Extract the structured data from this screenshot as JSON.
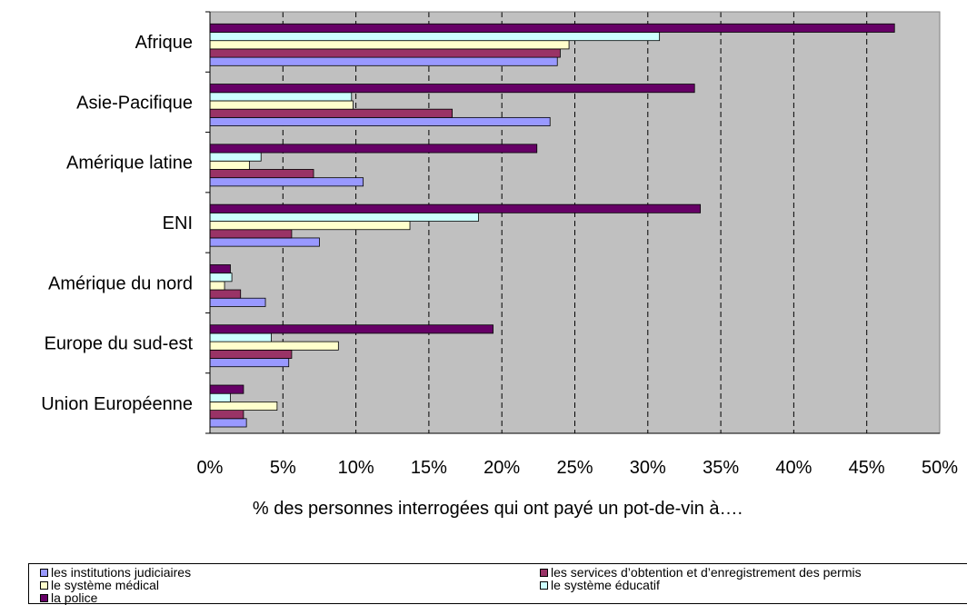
{
  "chart_data": {
    "type": "bar",
    "orientation": "horizontal",
    "categories": [
      "Afrique",
      "Asie-Pacifique",
      "Amérique latine",
      "ENI",
      "Amérique du nord",
      "Europe du sud-est",
      "Union Européenne"
    ],
    "series": [
      {
        "name": "les institutions judiciaires",
        "color": "#9999ff",
        "values": [
          23.8,
          23.3,
          10.5,
          7.5,
          3.8,
          5.4,
          2.5
        ]
      },
      {
        "name": "les services d’obtention et d’enregistrement des permis",
        "color": "#993366",
        "values": [
          24.0,
          16.6,
          7.1,
          5.6,
          2.1,
          5.6,
          2.3
        ]
      },
      {
        "name": "le système médical",
        "color": "#ffffcc",
        "values": [
          24.6,
          9.8,
          2.7,
          13.7,
          1.0,
          8.8,
          4.6
        ]
      },
      {
        "name": "le système éducatif",
        "color": "#ccffff",
        "values": [
          30.8,
          9.7,
          3.5,
          18.4,
          1.5,
          4.2,
          1.4
        ]
      },
      {
        "name": "la police",
        "color": "#660066",
        "values": [
          46.9,
          33.2,
          22.4,
          33.6,
          1.4,
          19.4,
          2.3
        ]
      }
    ],
    "xlim": [
      0,
      50
    ],
    "xticks": [
      "0%",
      "5%",
      "10%",
      "15%",
      "20%",
      "25%",
      "30%",
      "35%",
      "40%",
      "45%",
      "50%"
    ],
    "xlabel": "% des personnes interrogées qui ont payé un pot-de-vin à….",
    "grid": "vertical dashed",
    "plot_background": "#c0c0c0",
    "legend_position": "bottom"
  }
}
